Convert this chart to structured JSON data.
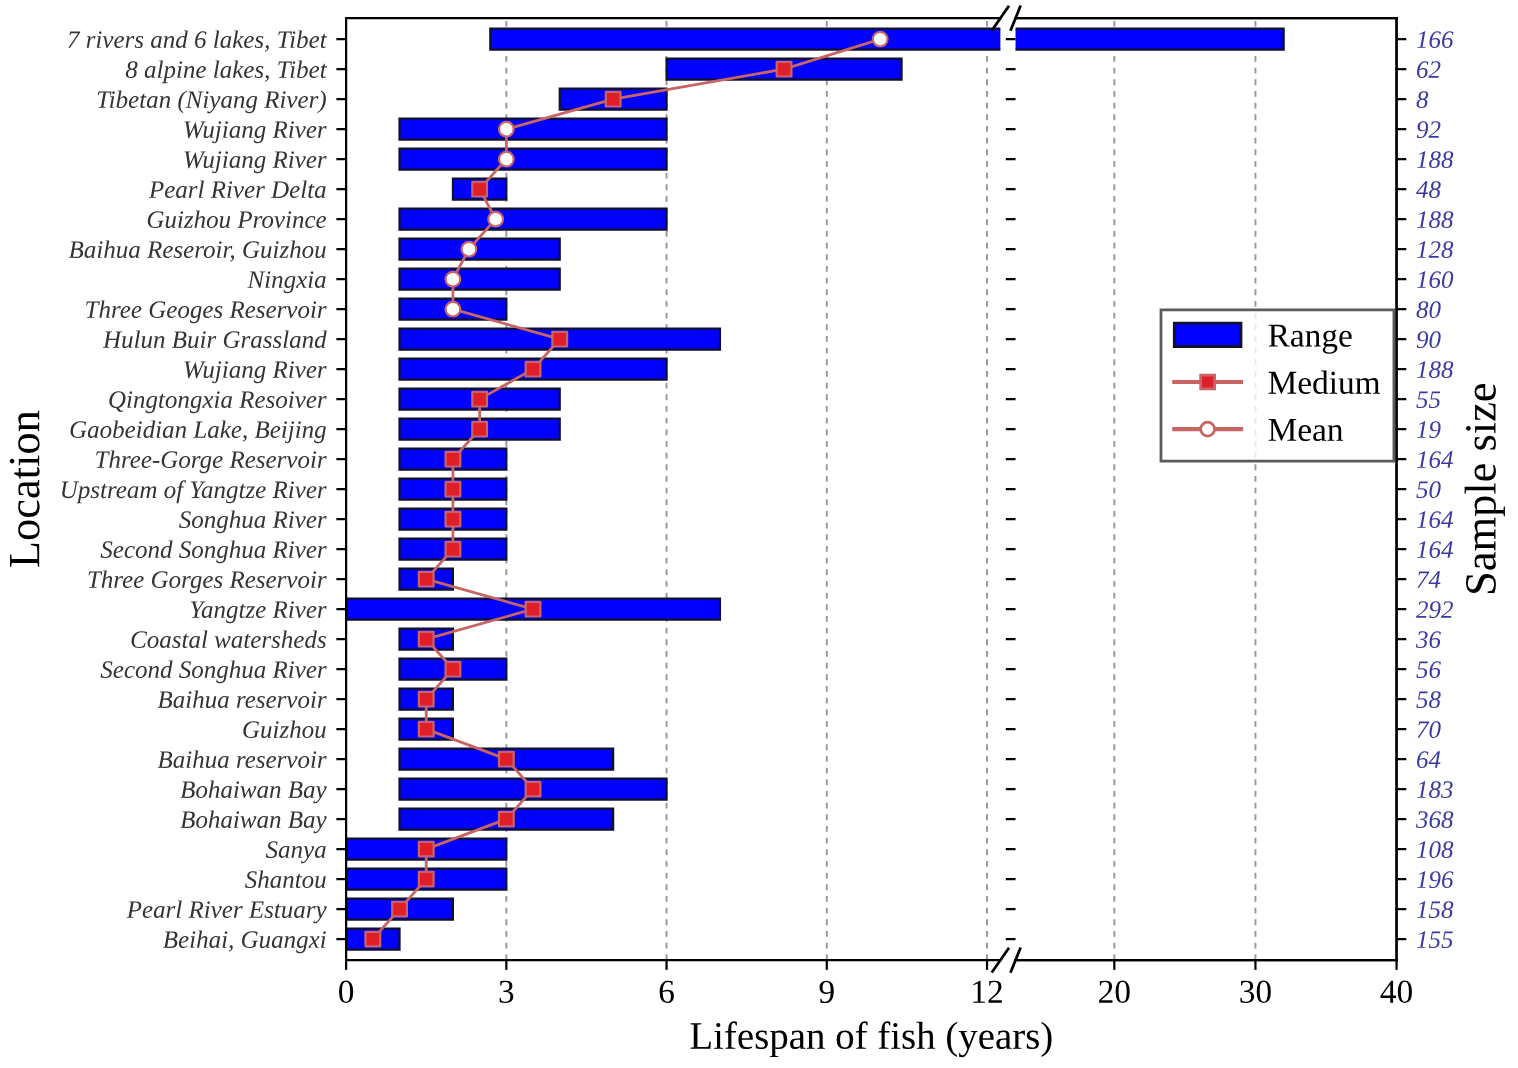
{
  "chart_data": [
    {
      "type": "bar",
      "orientation": "horizontal",
      "xlabel": "Lifespan of fish (years)",
      "ylabel": "Location",
      "categories": [
        "7 rivers and 6 lakes, Tibet",
        "8 alpine lakes, Tibet",
        "Tibetan (Niyang River)",
        "Wujiang River",
        "Wujiang River",
        "Pearl River Delta",
        "Guizhou Province",
        "Baihua Reseroir, Guizhou",
        "Ningxia",
        "Three Geoges Reservoir",
        "Hulun Buir Grassland",
        "Wujiang River",
        "Qingtongxia Resoiver",
        "Gaobeidian Lake, Beijing",
        "Three-Gorge Reservoir",
        "Upstream of Yangtze River",
        "Songhua River",
        "Second Songhua River",
        "Three Gorges Reservoir",
        "Yangtze River",
        "Coastal watersheds",
        "Second Songhua River",
        "Baihua reservoir",
        "Guizhou",
        "Baihua reservoir",
        "Bohaiwan Bay",
        "Bohaiwan Bay",
        "Sanya",
        "Shantou",
        "Pearl River Estuary",
        "Beihai, Guangxi"
      ],
      "series": [
        {
          "name": "Range",
          "color": "#0000ff",
          "base": [
            2.7,
            6,
            4,
            1,
            1,
            2,
            1,
            1,
            1,
            1,
            1,
            1,
            1,
            1,
            1,
            1,
            1,
            1,
            1,
            0,
            1,
            1,
            1,
            1,
            1,
            1,
            1,
            0,
            0,
            0,
            0
          ],
          "values": [
            29.3,
            4.4,
            2,
            5,
            5,
            1,
            5,
            3,
            3,
            2,
            6,
            5,
            3,
            3,
            2,
            2,
            2,
            2,
            1,
            7,
            1,
            2,
            1,
            1,
            4,
            5,
            4,
            3,
            3,
            2,
            1
          ]
        },
        {
          "type": "line",
          "color": "#c86464",
          "marker": "none",
          "values": [
            10,
            8.2,
            5,
            3,
            3,
            2.5,
            2.8,
            2.3,
            2,
            2,
            4,
            3.5,
            2.5,
            2.5,
            2,
            2,
            2,
            2,
            1.5,
            3.5,
            1.5,
            2,
            1.5,
            1.5,
            3,
            3.5,
            3,
            1.5,
            1.5,
            1,
            0.5
          ]
        },
        {
          "name": "Medium",
          "type": "scatter",
          "color": "#e01e28",
          "marker": "square",
          "values": [
            null,
            8.2,
            5,
            null,
            null,
            2.5,
            null,
            null,
            null,
            null,
            4,
            3.5,
            2.5,
            2.5,
            2,
            2,
            2,
            2,
            1.5,
            3.5,
            1.5,
            2,
            1.5,
            1.5,
            3,
            3.5,
            3,
            1.5,
            1.5,
            1,
            0.5
          ]
        },
        {
          "name": "Mean",
          "type": "scatter",
          "color": "#ffffff",
          "marker": "circle",
          "values": [
            10,
            null,
            null,
            3,
            3,
            null,
            2.8,
            2.3,
            2,
            2,
            null,
            null,
            null,
            null,
            null,
            null,
            null,
            null,
            null,
            null,
            null,
            null,
            null,
            null,
            null,
            null,
            null,
            null,
            null,
            null,
            null
          ]
        }
      ],
      "xlim": [
        0,
        12.25
      ],
      "xticks": [
        0,
        3,
        6,
        9,
        12
      ],
      "grid": "x",
      "legend": "right"
    },
    {
      "type": "bar",
      "orientation": "horizontal",
      "y2label": "Sample size",
      "tick_labels": "x",
      "y2_categories": [
        "166",
        "62",
        "8",
        "92",
        "188",
        "48",
        "188",
        "128",
        "160",
        "80",
        "90",
        "188",
        "55",
        "19",
        "164",
        "50",
        "164",
        "164",
        "74",
        "292",
        "36",
        "56",
        "58",
        "70",
        "64",
        "183",
        "368",
        "108",
        "196",
        "158",
        "155"
      ],
      "series": [
        {
          "color": "#0000ff",
          "base": [
            2.7,
            null,
            null,
            null,
            null,
            null,
            null,
            null,
            null,
            null,
            null,
            null,
            null,
            null,
            null,
            null,
            null,
            null,
            null,
            null,
            null,
            null,
            null,
            null,
            null,
            null,
            null,
            null,
            null,
            null,
            null
          ],
          "values": [
            29.3,
            null,
            null,
            null,
            null,
            null,
            null,
            null,
            null,
            null,
            null,
            null,
            null,
            null,
            null,
            null,
            null,
            null,
            null,
            null,
            null,
            null,
            null,
            null,
            null,
            null,
            null,
            null,
            null,
            null,
            null
          ]
        }
      ],
      "xlim": [
        13,
        40
      ],
      "xticks": [
        20,
        30,
        40
      ],
      "grid": "x"
    }
  ]
}
